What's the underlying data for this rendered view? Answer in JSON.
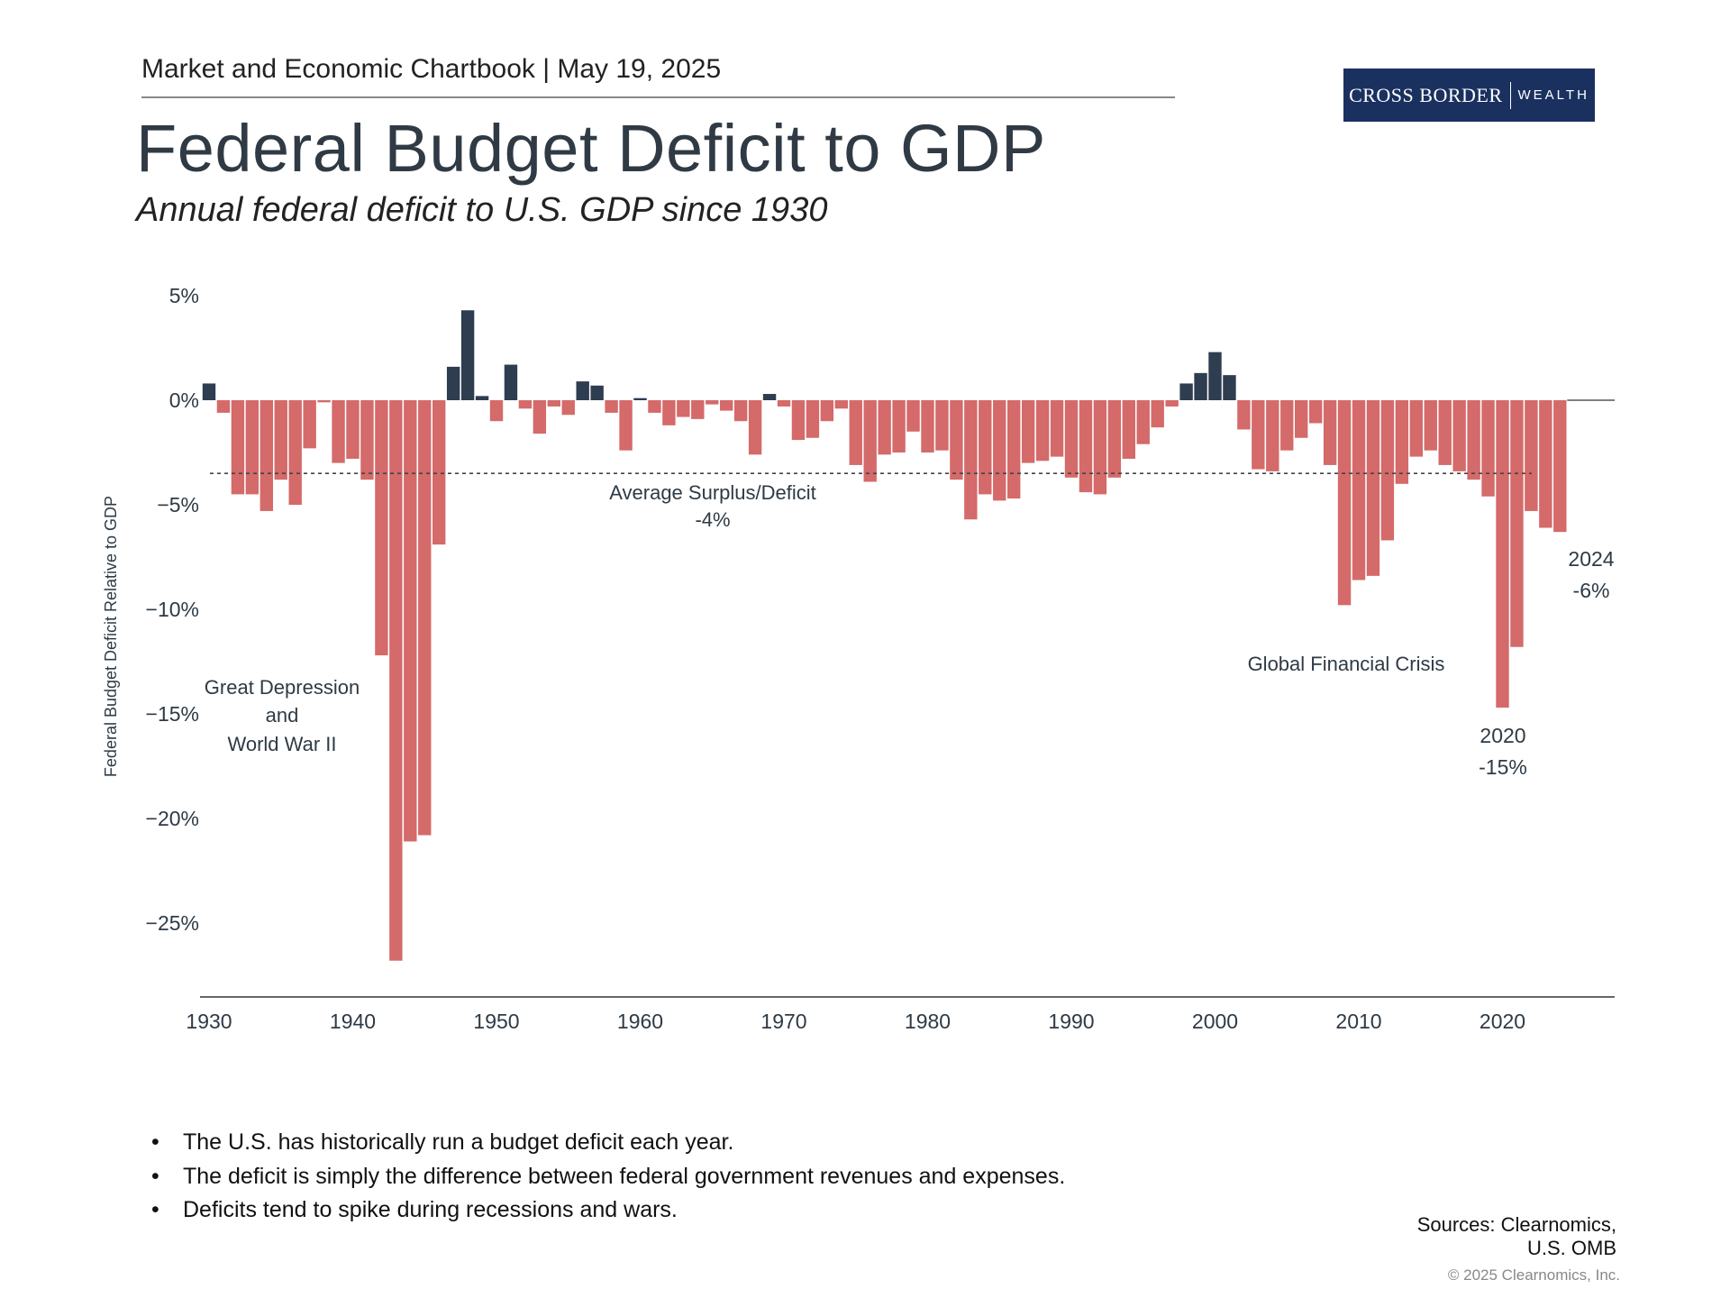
{
  "header": {
    "chartbook": "Market and Economic Chartbook | May 19, 2025",
    "title": "Federal Budget Deficit to GDP",
    "subtitle": "Annual federal deficit to U.S. GDP since 1930"
  },
  "logo": {
    "main": "CROSS BORDER",
    "sub": "WEALTH",
    "bg_color": "#1a3160"
  },
  "colors": {
    "deficit": "#d46a6a",
    "surplus": "#2e3d4f",
    "axis": "#333333",
    "text": "#2e3a45"
  },
  "chart_data": {
    "type": "bar",
    "ylabel": "Federal Budget Deficit Relative to GDP",
    "ylim": [
      -28.5,
      6
    ],
    "yticks": [
      5,
      0,
      -5,
      -10,
      -15,
      -20,
      -25
    ],
    "ytick_labels": [
      "5%",
      "0%",
      "−5%",
      "−10%",
      "−15%",
      "−20%",
      "−25%"
    ],
    "xticks": [
      1930,
      1940,
      1950,
      1960,
      1970,
      1980,
      1990,
      2000,
      2010,
      2020
    ],
    "x": [
      1930,
      1931,
      1932,
      1933,
      1934,
      1935,
      1936,
      1937,
      1938,
      1939,
      1940,
      1941,
      1942,
      1943,
      1944,
      1945,
      1946,
      1947,
      1948,
      1949,
      1950,
      1951,
      1952,
      1953,
      1954,
      1955,
      1956,
      1957,
      1958,
      1959,
      1960,
      1961,
      1962,
      1963,
      1964,
      1965,
      1966,
      1967,
      1968,
      1969,
      1970,
      1971,
      1972,
      1973,
      1974,
      1975,
      1976,
      1977,
      1978,
      1979,
      1980,
      1981,
      1982,
      1983,
      1984,
      1985,
      1986,
      1987,
      1988,
      1989,
      1990,
      1991,
      1992,
      1993,
      1994,
      1995,
      1996,
      1997,
      1998,
      1999,
      2000,
      2001,
      2002,
      2003,
      2004,
      2005,
      2006,
      2007,
      2008,
      2009,
      2010,
      2011,
      2012,
      2013,
      2014,
      2015,
      2016,
      2017,
      2018,
      2019,
      2020,
      2021,
      2022,
      2023,
      2024
    ],
    "values": [
      0.8,
      -0.6,
      -4.5,
      -4.5,
      -5.3,
      -3.8,
      -5.0,
      -2.3,
      -0.1,
      -3.0,
      -2.8,
      -3.8,
      -12.2,
      -26.8,
      -21.1,
      -20.8,
      -6.9,
      1.6,
      4.3,
      0.2,
      -1.0,
      1.7,
      -0.4,
      -1.6,
      -0.3,
      -0.7,
      0.9,
      0.7,
      -0.6,
      -2.4,
      0.1,
      -0.6,
      -1.2,
      -0.8,
      -0.9,
      -0.2,
      -0.5,
      -1.0,
      -2.6,
      0.3,
      -0.3,
      -1.9,
      -1.8,
      -1.0,
      -0.4,
      -3.1,
      -3.9,
      -2.6,
      -2.5,
      -1.5,
      -2.5,
      -2.4,
      -3.8,
      -5.7,
      -4.5,
      -4.8,
      -4.7,
      -3.0,
      -2.9,
      -2.7,
      -3.7,
      -4.4,
      -4.5,
      -3.7,
      -2.8,
      -2.1,
      -1.3,
      -0.3,
      0.8,
      1.3,
      2.3,
      1.2,
      -1.4,
      -3.3,
      -3.4,
      -2.4,
      -1.8,
      -1.1,
      -3.1,
      -9.8,
      -8.6,
      -8.4,
      -6.7,
      -4.0,
      -2.7,
      -2.4,
      -3.1,
      -3.4,
      -3.8,
      -4.6,
      -14.7,
      -11.8,
      -5.3,
      -6.1,
      -6.3
    ],
    "average": -3.5,
    "annotations": {
      "average_label": [
        "Average Surplus/Deficit",
        "-4%"
      ],
      "depression_label": [
        "Great Depression",
        "and",
        "World War II"
      ],
      "gfc_label": "Global Financial Crisis",
      "y2020_label": [
        "2020",
        "-15%"
      ],
      "y2024_label": [
        "2024",
        "-6%"
      ]
    }
  },
  "bullets": [
    "The U.S. has historically run a budget deficit each year.",
    "The deficit is simply the difference between federal government revenues and expenses.",
    "Deficits tend to spike during recessions and wars."
  ],
  "bullet_glyph": "•",
  "sources": {
    "line1": "Sources: Clearnomics,",
    "line2": "U.S. OMB"
  },
  "copyright": "© 2025 Clearnomics, Inc."
}
